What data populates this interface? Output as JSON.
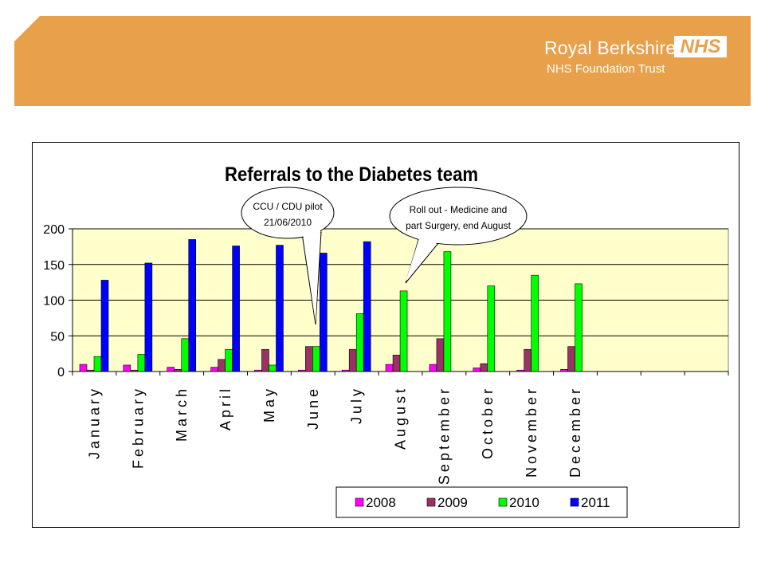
{
  "header": {
    "org_name": "Royal Berkshire",
    "org_sub": "NHS Foundation Trust",
    "logo_text": "NHS",
    "banner_color": "#e8a04b"
  },
  "chart_data": {
    "type": "bar",
    "title": "Referrals to the Diabetes team",
    "xlabel": "",
    "ylabel": "",
    "ylim": [
      0,
      200
    ],
    "yticks": [
      0,
      50,
      100,
      150,
      200
    ],
    "grid": true,
    "legend_position": "bottom-right",
    "plot_background": "#ffffcc",
    "categories": [
      "January",
      "February",
      "March",
      "April",
      "May",
      "June",
      "July",
      "August",
      "September",
      "October",
      "November",
      "December",
      "",
      "",
      ""
    ],
    "series": [
      {
        "name": "2008",
        "color": "#ff00ff",
        "values": [
          10,
          9,
          6,
          6,
          2,
          2,
          2,
          10,
          10,
          5,
          2,
          3,
          null,
          null,
          null
        ]
      },
      {
        "name": "2009",
        "color": "#993366",
        "values": [
          2,
          2,
          3,
          17,
          31,
          35,
          31,
          23,
          46,
          11,
          31,
          35,
          null,
          null,
          null
        ]
      },
      {
        "name": "2010",
        "color": "#00ff00",
        "values": [
          21,
          24,
          46,
          31,
          9,
          35,
          81,
          113,
          168,
          120,
          135,
          123,
          null,
          null,
          null
        ]
      },
      {
        "name": "2011",
        "color": "#0000ff",
        "values": [
          128,
          152,
          185,
          176,
          177,
          166,
          182,
          null,
          null,
          null,
          null,
          null,
          null,
          null,
          null
        ]
      }
    ],
    "annotations": [
      {
        "text_lines": [
          "CCU / CDU pilot",
          "21/06/2010"
        ],
        "points_to": "June"
      },
      {
        "text_lines": [
          "Roll out - Medicine and",
          "part Surgery, end August"
        ],
        "points_to": "August"
      }
    ]
  }
}
